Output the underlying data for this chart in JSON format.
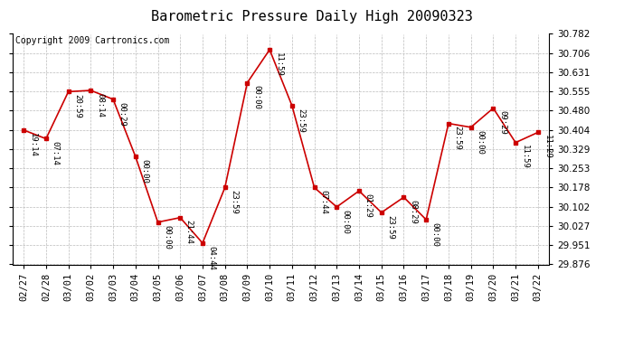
{
  "title": "Barometric Pressure Daily High 20090323",
  "copyright": "Copyright 2009 Cartronics.com",
  "x_labels": [
    "02/27",
    "02/28",
    "03/01",
    "03/02",
    "03/03",
    "03/04",
    "03/05",
    "03/06",
    "03/07",
    "03/08",
    "03/09",
    "03/10",
    "03/11",
    "03/12",
    "03/13",
    "03/14",
    "03/15",
    "03/16",
    "03/17",
    "03/18",
    "03/19",
    "03/20",
    "03/21",
    "03/22"
  ],
  "y_values": [
    30.404,
    30.37,
    30.555,
    30.56,
    30.525,
    30.3,
    30.042,
    30.06,
    29.96,
    30.178,
    30.59,
    30.72,
    30.5,
    30.178,
    30.102,
    30.165,
    30.08,
    30.14,
    30.052,
    30.43,
    30.415,
    30.49,
    30.355,
    30.395
  ],
  "time_labels": [
    "19:14",
    "07:14",
    "20:59",
    "08:14",
    "00:29",
    "00:00",
    "00:00",
    "21:44",
    "04:44",
    "23:59",
    "00:00",
    "11:59",
    "23:59",
    "07:44",
    "00:00",
    "01:29",
    "23:59",
    "08:29",
    "00:00",
    "23:59",
    "00:00",
    "09:29",
    "11:59",
    "11:29"
  ],
  "ylim_min": 29.876,
  "ylim_max": 30.782,
  "y_ticks": [
    29.876,
    29.951,
    30.027,
    30.102,
    30.178,
    30.253,
    30.329,
    30.404,
    30.48,
    30.555,
    30.631,
    30.706,
    30.782
  ],
  "line_color": "#cc0000",
  "marker_color": "#cc0000",
  "bg_color": "#ffffff",
  "plot_bg_color": "#ffffff",
  "grid_color": "#bbbbbb",
  "title_fontsize": 11,
  "copyright_fontsize": 7,
  "tick_label_fontsize": 7.5,
  "annotation_fontsize": 6.5
}
